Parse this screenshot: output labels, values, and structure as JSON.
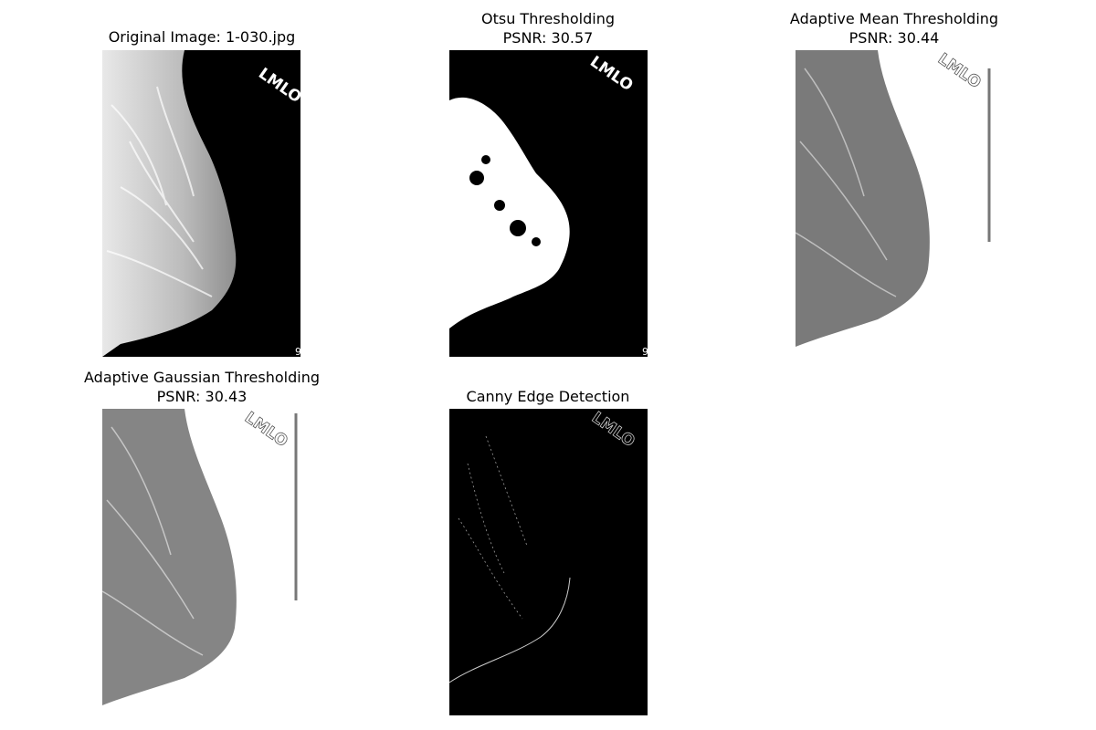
{
  "figure": {
    "panels": [
      {
        "id": "original",
        "title_line1": "Original Image: 1-030.jpg",
        "title_line2": "",
        "marker": "LMLO",
        "corner_digit": "9"
      },
      {
        "id": "otsu",
        "title_line1": "Otsu Thresholding",
        "title_line2": "PSNR: 30.57",
        "marker": "LMLO",
        "corner_digit": "9"
      },
      {
        "id": "adaptive-mean",
        "title_line1": "Adaptive Mean Thresholding",
        "title_line2": "PSNR: 30.44",
        "marker": "LMLO",
        "corner_digit": ""
      },
      {
        "id": "adaptive-gaussian",
        "title_line1": "Adaptive Gaussian Thresholding",
        "title_line2": "PSNR: 30.43",
        "marker": "LMLO",
        "corner_digit": ""
      },
      {
        "id": "canny",
        "title_line1": "Canny Edge Detection",
        "title_line2": "",
        "marker": "LMLO",
        "corner_digit": ""
      }
    ],
    "colors": {
      "background": "#ffffff",
      "image_black": "#000000",
      "tissue_gray": "#bdbdbd",
      "threshold_white": "#ffffff"
    }
  }
}
